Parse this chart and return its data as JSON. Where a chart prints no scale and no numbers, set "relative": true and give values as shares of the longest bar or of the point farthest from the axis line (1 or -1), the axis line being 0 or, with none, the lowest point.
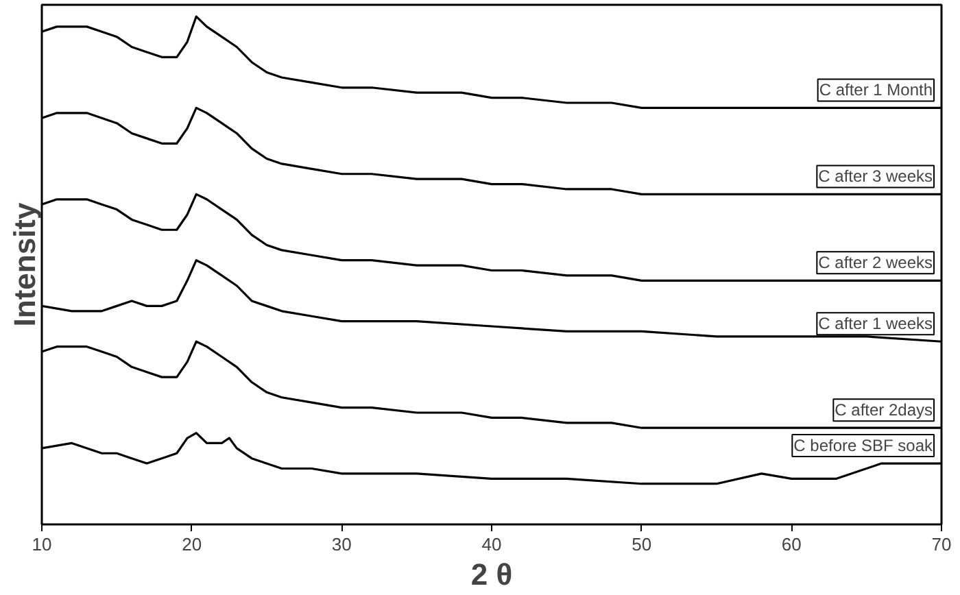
{
  "chart_data": {
    "type": "line",
    "relative": true,
    "xlabel": "2 θ",
    "ylabel": "Intensity",
    "xlim": [
      10,
      70
    ],
    "xticks": [
      10,
      20,
      30,
      40,
      50,
      60,
      70
    ],
    "tick_labels": "x",
    "line_style": "solid",
    "series": [
      {
        "name": "C after 1 Month",
        "color": "#000000",
        "x": [
          10,
          11,
          12,
          13,
          14,
          15,
          16,
          17,
          18,
          19,
          19.7,
          20.3,
          21,
          22,
          23,
          24,
          25,
          26,
          28,
          30,
          32,
          35,
          38,
          40,
          42,
          45,
          48,
          50,
          52,
          55,
          58,
          60,
          63,
          66,
          70
        ],
        "values": [
          0.97,
          0.98,
          0.98,
          0.98,
          0.97,
          0.96,
          0.94,
          0.93,
          0.92,
          0.92,
          0.95,
          1.0,
          0.98,
          0.96,
          0.94,
          0.91,
          0.89,
          0.88,
          0.87,
          0.86,
          0.86,
          0.85,
          0.85,
          0.84,
          0.84,
          0.83,
          0.83,
          0.82,
          0.82,
          0.82,
          0.82,
          0.82,
          0.82,
          0.82,
          0.82
        ]
      },
      {
        "name": "C after 3 weeks",
        "color": "#000000",
        "x": [
          10,
          11,
          12,
          13,
          14,
          15,
          16,
          17,
          18,
          19,
          19.7,
          20.3,
          21,
          22,
          23,
          24,
          25,
          26,
          28,
          30,
          32,
          35,
          38,
          40,
          42,
          45,
          48,
          50,
          52,
          55,
          58,
          60,
          63,
          66,
          70
        ],
        "values": [
          0.8,
          0.81,
          0.81,
          0.81,
          0.8,
          0.79,
          0.77,
          0.76,
          0.75,
          0.75,
          0.78,
          0.82,
          0.81,
          0.79,
          0.77,
          0.74,
          0.72,
          0.71,
          0.7,
          0.69,
          0.69,
          0.68,
          0.68,
          0.67,
          0.67,
          0.66,
          0.66,
          0.65,
          0.65,
          0.65,
          0.65,
          0.65,
          0.65,
          0.65,
          0.65
        ]
      },
      {
        "name": "C after 2 weeks",
        "color": "#000000",
        "x": [
          10,
          11,
          12,
          13,
          14,
          15,
          16,
          17,
          18,
          19,
          19.7,
          20.3,
          21,
          22,
          23,
          24,
          25,
          26,
          28,
          30,
          32,
          35,
          38,
          40,
          42,
          45,
          48,
          50,
          52,
          55,
          58,
          60,
          63,
          66,
          70
        ],
        "values": [
          0.63,
          0.64,
          0.64,
          0.64,
          0.63,
          0.62,
          0.6,
          0.59,
          0.58,
          0.58,
          0.61,
          0.65,
          0.64,
          0.62,
          0.6,
          0.57,
          0.55,
          0.54,
          0.53,
          0.52,
          0.52,
          0.51,
          0.51,
          0.5,
          0.5,
          0.49,
          0.49,
          0.48,
          0.48,
          0.48,
          0.48,
          0.48,
          0.48,
          0.48,
          0.48
        ]
      },
      {
        "name": "C after 1 weeks",
        "color": "#000000",
        "x": [
          10,
          12,
          14,
          15,
          16,
          17,
          18,
          19,
          19.7,
          20.3,
          21,
          22,
          23,
          24,
          25,
          26,
          28,
          30,
          35,
          40,
          45,
          50,
          55,
          60,
          65,
          70
        ],
        "values": [
          0.43,
          0.42,
          0.42,
          0.43,
          0.44,
          0.43,
          0.43,
          0.44,
          0.48,
          0.52,
          0.51,
          0.49,
          0.47,
          0.44,
          0.43,
          0.42,
          0.41,
          0.4,
          0.4,
          0.39,
          0.38,
          0.38,
          0.37,
          0.37,
          0.37,
          0.36
        ]
      },
      {
        "name": "C after 2days",
        "color": "#000000",
        "x": [
          10,
          11,
          12,
          13,
          14,
          15,
          16,
          17,
          18,
          19,
          19.7,
          20.3,
          21,
          22,
          23,
          24,
          25,
          26,
          28,
          30,
          32,
          35,
          38,
          40,
          42,
          45,
          48,
          50,
          52,
          55,
          58,
          60,
          63,
          66,
          70
        ],
        "values": [
          0.34,
          0.35,
          0.35,
          0.35,
          0.34,
          0.33,
          0.31,
          0.3,
          0.29,
          0.29,
          0.32,
          0.36,
          0.35,
          0.33,
          0.31,
          0.28,
          0.26,
          0.25,
          0.24,
          0.23,
          0.23,
          0.22,
          0.22,
          0.21,
          0.21,
          0.2,
          0.2,
          0.19,
          0.19,
          0.19,
          0.19,
          0.19,
          0.19,
          0.19,
          0.19
        ]
      },
      {
        "name": "C before SBF soak",
        "color": "#000000",
        "x": [
          10,
          12,
          14,
          15,
          16,
          17,
          18,
          19,
          19.7,
          20.3,
          21,
          22,
          22.5,
          23,
          24,
          26,
          28,
          30,
          35,
          40,
          45,
          50,
          55,
          58,
          60,
          63,
          66,
          68,
          70
        ],
        "values": [
          0.15,
          0.16,
          0.14,
          0.14,
          0.13,
          0.12,
          0.13,
          0.14,
          0.17,
          0.18,
          0.16,
          0.16,
          0.17,
          0.15,
          0.13,
          0.11,
          0.11,
          0.1,
          0.1,
          0.09,
          0.09,
          0.08,
          0.08,
          0.1,
          0.09,
          0.09,
          0.12,
          0.12,
          0.12
        ]
      }
    ]
  }
}
